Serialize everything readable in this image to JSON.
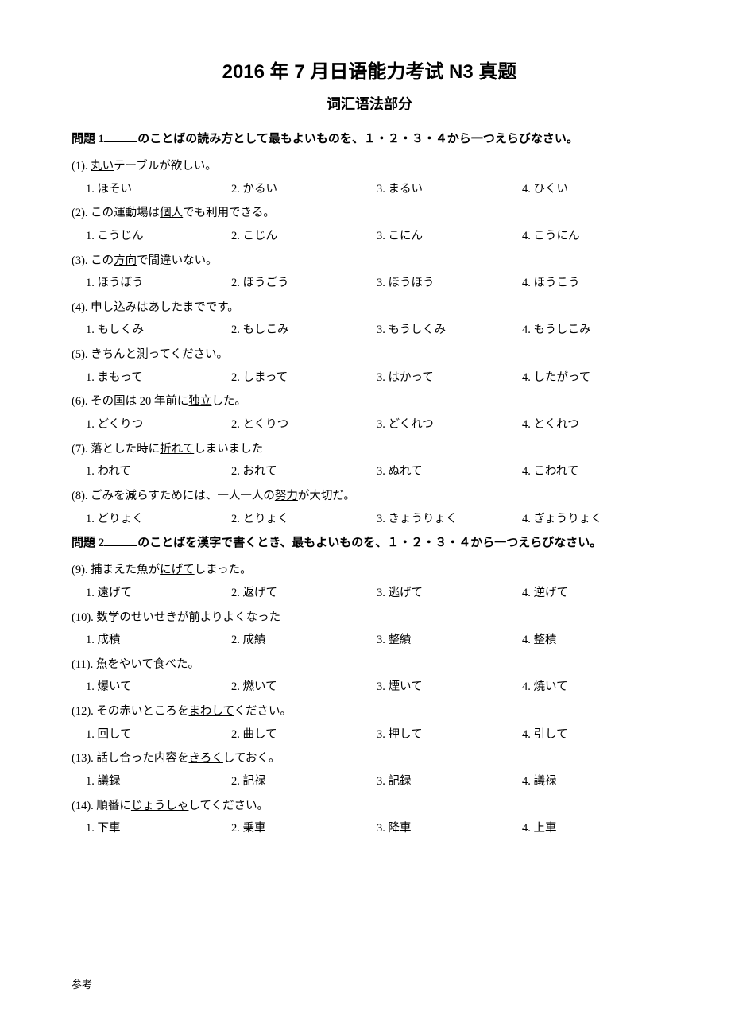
{
  "title": "2016 年 7 月日语能力考试 N3 真题",
  "subtitle": "词汇语法部分",
  "section1": {
    "label_pre": "問題 1",
    "label_post": "のことばの読み方として最もよいものを、１・２・３・４から一つえらびなさい。"
  },
  "section2": {
    "label_pre": "問題 2",
    "label_post": "のことばを漢字で書くとき、最もよいものを、１・２・３・４から一つえらびなさい。"
  },
  "questions1": [
    {
      "num": "(1).",
      "pre": "",
      "u": "丸い",
      "post": "テーブルが欲しい。",
      "opts": [
        "1. ほそい",
        "2. かるい",
        "3. まるい",
        "4. ひくい"
      ]
    },
    {
      "num": "(2).",
      "pre": "この運動場は",
      "u": "個人",
      "post": "でも利用できる。",
      "opts": [
        "1. こうじん",
        "2. こじん",
        "3. こにん",
        "4. こうにん"
      ]
    },
    {
      "num": "(3).",
      "pre": "この",
      "u": "方向",
      "post": "で間違いない。",
      "opts": [
        "1. ほうぼう",
        "2. ほうごう",
        "3. ほうほう",
        "4. ほうこう"
      ]
    },
    {
      "num": "(4).",
      "pre": "",
      "u": "申し込み",
      "post": "はあしたまでです。",
      "opts": [
        "1. もしくみ",
        "2. もしこみ",
        "3. もうしくみ",
        "4. もうしこみ"
      ]
    },
    {
      "num": "(5).",
      "pre": "きちんと",
      "u": "測って",
      "post": "ください。",
      "opts": [
        "1. まもって",
        "2. しまって",
        "3. はかって",
        "4. したがって"
      ]
    },
    {
      "num": "(6).",
      "pre": "その国は 20 年前に",
      "u": "独立",
      "post": "した。",
      "opts": [
        "1. どくりつ",
        "2. とくりつ",
        "3. どくれつ",
        "4. とくれつ"
      ]
    },
    {
      "num": "(7).",
      "pre": "落とした時に",
      "u": "折れて",
      "post": "しまいました",
      "opts": [
        "1. われて",
        "2. おれて",
        "3. ぬれて",
        "4. こわれて"
      ]
    },
    {
      "num": "(8).",
      "pre": "ごみを減らすためには、一人一人の",
      "u": "努力",
      "post": "が大切だ。",
      "opts": [
        "1. どりょく",
        "2. とりょく",
        "3. きょうりょく",
        "4. ぎょうりょく"
      ]
    }
  ],
  "questions2": [
    {
      "num": "(9).",
      "pre": "捕まえた魚が",
      "u": "にげて",
      "post": "しまった。",
      "opts": [
        "1. 遠げて",
        "2. 返げて",
        "3. 逃げて",
        "4. 逆げて"
      ]
    },
    {
      "num": "(10).",
      "pre": "数学の",
      "u": "せいせき",
      "post": "が前よりよくなった",
      "opts": [
        "1. 成積",
        "2. 成績",
        "3. 整績",
        "4. 整積"
      ]
    },
    {
      "num": "(11).",
      "pre": "魚を",
      "u": "やいて",
      "post": "食べた。",
      "opts": [
        "1. 爆いて",
        "2. 燃いて",
        "3. 煙いて",
        "4. 焼いて"
      ]
    },
    {
      "num": "(12).",
      "pre": "その赤いところを",
      "u": "まわして",
      "post": "ください。",
      "opts": [
        "1. 回して",
        "2. 曲して",
        "3. 押して",
        "4. 引して"
      ]
    },
    {
      "num": "(13).",
      "pre": "話し合った内容を",
      "u": "きろく",
      "post": "しておく。",
      "opts": [
        "1. 議録",
        "2. 記禄",
        "3. 記録",
        "4. 議禄"
      ]
    },
    {
      "num": "(14).",
      "pre": "順番に",
      "u": "じょうしゃ",
      "post": "してください。",
      "opts": [
        "1. 下車",
        "2. 乗車",
        "3. 降車",
        "4. 上車"
      ]
    }
  ],
  "footer": "参考"
}
